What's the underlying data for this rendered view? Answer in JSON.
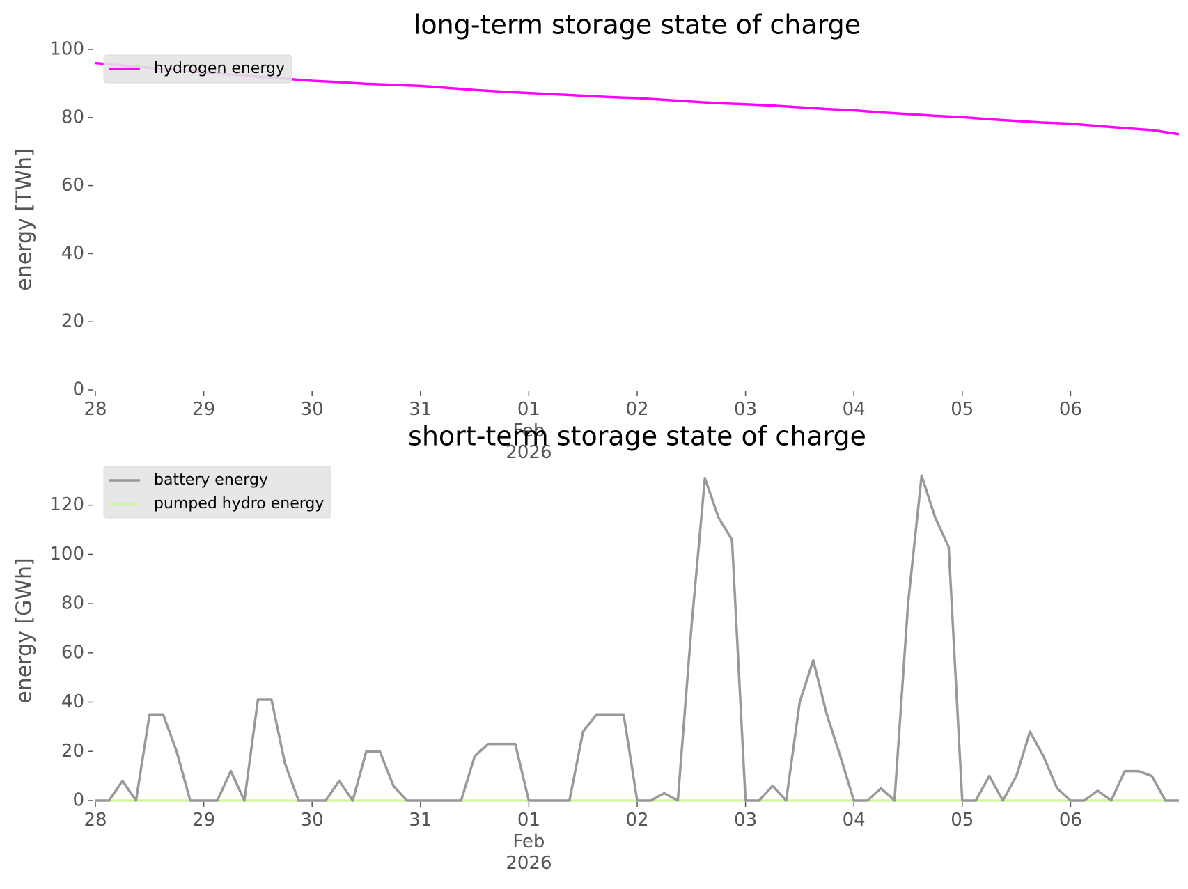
{
  "chart_data": [
    {
      "type": "line",
      "title": "long-term storage state of charge",
      "ylabel": "energy [TWh]",
      "legend": "upper left",
      "x": [
        "2026-01-28T00:00",
        "2026-01-28T06:00",
        "2026-01-28T12:00",
        "2026-01-28T18:00",
        "2026-01-29T00:00",
        "2026-01-29T06:00",
        "2026-01-29T12:00",
        "2026-01-29T18:00",
        "2026-01-30T00:00",
        "2026-01-30T06:00",
        "2026-01-30T12:00",
        "2026-01-30T18:00",
        "2026-01-31T00:00",
        "2026-01-31T06:00",
        "2026-01-31T12:00",
        "2026-01-31T18:00",
        "2026-02-01T00:00",
        "2026-02-01T06:00",
        "2026-02-01T12:00",
        "2026-02-01T18:00",
        "2026-02-02T00:00",
        "2026-02-02T06:00",
        "2026-02-02T12:00",
        "2026-02-02T18:00",
        "2026-02-03T00:00",
        "2026-02-03T06:00",
        "2026-02-03T12:00",
        "2026-02-03T18:00",
        "2026-02-04T00:00",
        "2026-02-04T06:00",
        "2026-02-04T12:00",
        "2026-02-04T18:00",
        "2026-02-05T00:00",
        "2026-02-05T06:00",
        "2026-02-05T12:00",
        "2026-02-05T18:00",
        "2026-02-06T00:00",
        "2026-02-06T06:00",
        "2026-02-06T12:00",
        "2026-02-06T18:00",
        "2026-02-07T00:00"
      ],
      "series": [
        {
          "name": "hydrogen energy",
          "color": "#ff00ff",
          "values": [
            96,
            95.3,
            94.6,
            93.9,
            93.2,
            92.6,
            92.0,
            91.4,
            90.8,
            90.4,
            89.9,
            89.6,
            89.3,
            88.7,
            88.1,
            87.6,
            87.2,
            86.8,
            86.4,
            86.0,
            85.7,
            85.2,
            84.7,
            84.2,
            83.9,
            83.5,
            83.0,
            82.5,
            82.1,
            81.5,
            81.0,
            80.5,
            80.1,
            79.5,
            79.0,
            78.5,
            78.2,
            77.5,
            76.9,
            76.3,
            75.1
          ]
        }
      ],
      "xlim": [
        "2026-01-28T00:00",
        "2026-02-07T00:00"
      ],
      "ylim": [
        0,
        100
      ],
      "yticks": [
        0,
        20,
        40,
        60,
        80,
        100
      ],
      "xticks": [
        {
          "value": "2026-01-28T00:00",
          "label": "28"
        },
        {
          "value": "2026-01-29T00:00",
          "label": "29"
        },
        {
          "value": "2026-01-30T00:00",
          "label": "30"
        },
        {
          "value": "2026-01-31T00:00",
          "label": "31"
        },
        {
          "value": "2026-02-01T00:00",
          "label": [
            "01",
            "Feb",
            "2026"
          ]
        },
        {
          "value": "2026-02-02T00:00",
          "label": "02"
        },
        {
          "value": "2026-02-03T00:00",
          "label": "03"
        },
        {
          "value": "2026-02-04T00:00",
          "label": "04"
        },
        {
          "value": "2026-02-05T00:00",
          "label": "05"
        },
        {
          "value": "2026-02-06T00:00",
          "label": "06"
        }
      ]
    },
    {
      "type": "line",
      "title": "short-term storage state of charge",
      "ylabel": "energy [GWh]",
      "legend": "upper left",
      "x": [
        "2026-01-28T00:00",
        "2026-01-28T03:00",
        "2026-01-28T06:00",
        "2026-01-28T09:00",
        "2026-01-28T12:00",
        "2026-01-28T15:00",
        "2026-01-28T18:00",
        "2026-01-28T21:00",
        "2026-01-29T00:00",
        "2026-01-29T03:00",
        "2026-01-29T06:00",
        "2026-01-29T09:00",
        "2026-01-29T12:00",
        "2026-01-29T15:00",
        "2026-01-29T18:00",
        "2026-01-29T21:00",
        "2026-01-30T00:00",
        "2026-01-30T03:00",
        "2026-01-30T06:00",
        "2026-01-30T09:00",
        "2026-01-30T12:00",
        "2026-01-30T15:00",
        "2026-01-30T18:00",
        "2026-01-30T21:00",
        "2026-01-31T00:00",
        "2026-01-31T03:00",
        "2026-01-31T06:00",
        "2026-01-31T09:00",
        "2026-01-31T12:00",
        "2026-01-31T15:00",
        "2026-01-31T18:00",
        "2026-01-31T21:00",
        "2026-02-01T00:00",
        "2026-02-01T03:00",
        "2026-02-01T06:00",
        "2026-02-01T09:00",
        "2026-02-01T12:00",
        "2026-02-01T15:00",
        "2026-02-01T18:00",
        "2026-02-01T21:00",
        "2026-02-02T00:00",
        "2026-02-02T03:00",
        "2026-02-02T06:00",
        "2026-02-02T09:00",
        "2026-02-02T12:00",
        "2026-02-02T15:00",
        "2026-02-02T18:00",
        "2026-02-02T21:00",
        "2026-02-03T00:00",
        "2026-02-03T03:00",
        "2026-02-03T06:00",
        "2026-02-03T09:00",
        "2026-02-03T12:00",
        "2026-02-03T15:00",
        "2026-02-03T18:00",
        "2026-02-03T21:00",
        "2026-02-04T00:00",
        "2026-02-04T03:00",
        "2026-02-04T06:00",
        "2026-02-04T09:00",
        "2026-02-04T12:00",
        "2026-02-04T15:00",
        "2026-02-04T18:00",
        "2026-02-04T21:00",
        "2026-02-05T00:00",
        "2026-02-05T03:00",
        "2026-02-05T06:00",
        "2026-02-05T09:00",
        "2026-02-05T12:00",
        "2026-02-05T15:00",
        "2026-02-05T18:00",
        "2026-02-05T21:00",
        "2026-02-06T00:00",
        "2026-02-06T03:00",
        "2026-02-06T06:00",
        "2026-02-06T09:00",
        "2026-02-06T12:00",
        "2026-02-06T15:00",
        "2026-02-06T18:00",
        "2026-02-06T21:00",
        "2026-02-07T00:00"
      ],
      "series": [
        {
          "name": "battery energy",
          "color": "#999999",
          "values": [
            0,
            0,
            8,
            0,
            35,
            35,
            20,
            0,
            0,
            0,
            12,
            0,
            41,
            41,
            15,
            0,
            0,
            0,
            8,
            0,
            20,
            20,
            6,
            0,
            0,
            0,
            0,
            0,
            18,
            23,
            23,
            23,
            0,
            0,
            0,
            0,
            28,
            35,
            35,
            35,
            0,
            0,
            3,
            0,
            70,
            131,
            115,
            106,
            0,
            0,
            6,
            0,
            40,
            57,
            35,
            18,
            0,
            0,
            5,
            0,
            80,
            132,
            115,
            103,
            0,
            0,
            10,
            0,
            10,
            28,
            18,
            5,
            0,
            0,
            4,
            0,
            12,
            12,
            10,
            0,
            0
          ]
        },
        {
          "name": "pumped hydro energy",
          "color": "#d4f5a0",
          "values": [
            0,
            0,
            0,
            0,
            0,
            0,
            0,
            0,
            0,
            0,
            0,
            0,
            0,
            0,
            0,
            0,
            0,
            0,
            0,
            0,
            0,
            0,
            0,
            0,
            0,
            0,
            0,
            0,
            0,
            0,
            0,
            0,
            0,
            0,
            0,
            0,
            0,
            0,
            0,
            0,
            0,
            0,
            0,
            0,
            0,
            0,
            0,
            0,
            0,
            0,
            0,
            0,
            0,
            0,
            0,
            0,
            0,
            0,
            0,
            0,
            0,
            0,
            0,
            0,
            0,
            0,
            0,
            0,
            0,
            0,
            0,
            0,
            0,
            0,
            0,
            0,
            0,
            0,
            0,
            0,
            0
          ]
        }
      ],
      "xlim": [
        "2026-01-28T00:00",
        "2026-02-07T00:00"
      ],
      "ylim": [
        0,
        138
      ],
      "yticks": [
        0,
        20,
        40,
        60,
        80,
        100,
        120
      ],
      "xticks": [
        {
          "value": "2026-01-28T00:00",
          "label": "28"
        },
        {
          "value": "2026-01-29T00:00",
          "label": "29"
        },
        {
          "value": "2026-01-30T00:00",
          "label": "30"
        },
        {
          "value": "2026-01-31T00:00",
          "label": "31"
        },
        {
          "value": "2026-02-01T00:00",
          "label": [
            "01",
            "Feb",
            "2026"
          ]
        },
        {
          "value": "2026-02-02T00:00",
          "label": "02"
        },
        {
          "value": "2026-02-03T00:00",
          "label": "03"
        },
        {
          "value": "2026-02-04T00:00",
          "label": "04"
        },
        {
          "value": "2026-02-05T00:00",
          "label": "05"
        },
        {
          "value": "2026-02-06T00:00",
          "label": "06"
        }
      ]
    }
  ]
}
